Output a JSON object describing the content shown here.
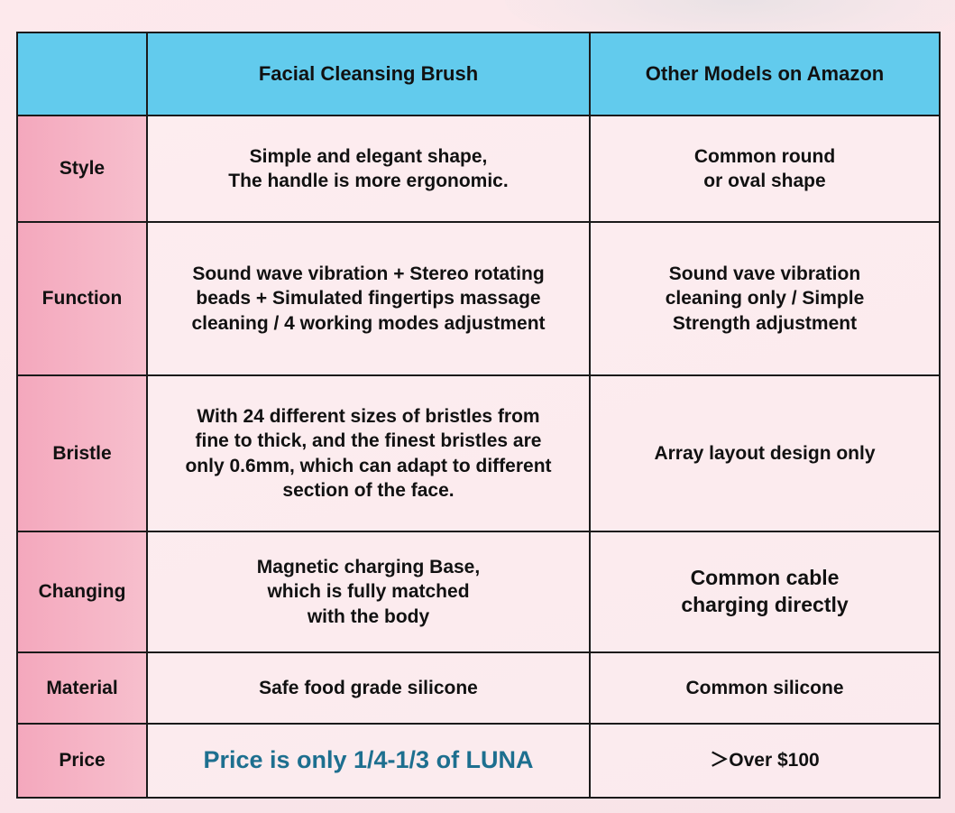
{
  "header": {
    "col1": "",
    "col2": "Facial Cleansing Brush",
    "col3": "Other Models on Amazon"
  },
  "rows": [
    {
      "label": "Style",
      "brush": [
        "Simple and elegant shape,",
        "The handle is more ergonomic."
      ],
      "other": [
        "Common round",
        "or oval shape"
      ]
    },
    {
      "label": "Function",
      "brush": [
        "Sound wave vibration + Stereo rotating",
        "beads + Simulated fingertips massage",
        "cleaning / 4 working modes adjustment"
      ],
      "other": [
        "Sound vave vibration",
        "cleaning  only / Simple",
        "Strength adjustment"
      ]
    },
    {
      "label": "Bristle",
      "brush": [
        "With 24 different sizes of bristles from",
        "fine to thick, and the finest bristles are",
        "only 0.6mm, which can adapt to different",
        "section of the face."
      ],
      "other": [
        "Array layout design only"
      ]
    },
    {
      "label": "Changing",
      "brush": [
        "Magnetic charging Base,",
        "which is fully matched",
        "with the body"
      ],
      "other": [
        "Common cable",
        "charging directly"
      ]
    },
    {
      "label": "Material",
      "brush": [
        "Safe food grade silicone"
      ],
      "other": [
        "Common silicone"
      ]
    },
    {
      "label": "Price",
      "brush": [
        "Price is only 1/4-1/3 of LUNA"
      ],
      "other": [
        "＞Over $100"
      ]
    }
  ],
  "colors": {
    "header_bg": "#62cbed",
    "label_bg": "#f4a8bd",
    "accent_text": "#1d6f8f"
  }
}
